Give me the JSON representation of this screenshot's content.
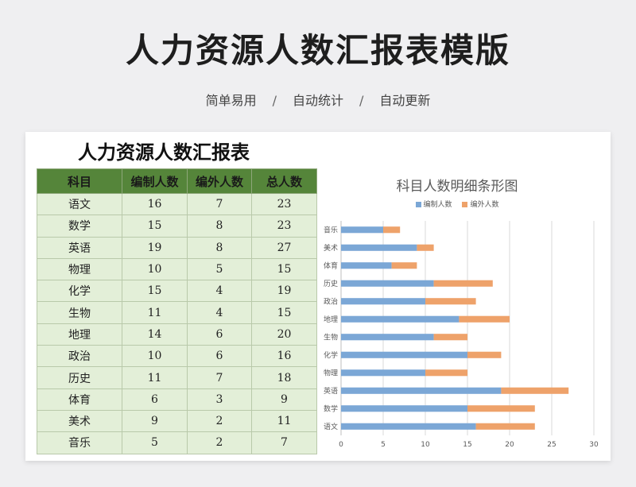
{
  "header": {
    "title": "人力资源人数汇报表模版",
    "features": [
      "简单易用",
      "自动统计",
      "自动更新"
    ],
    "separator": "/"
  },
  "sheet": {
    "title": "人力资源人数汇报表",
    "columns": [
      "科目",
      "编制人数",
      "编外人数",
      "总人数"
    ],
    "rows": [
      [
        "语文",
        "16",
        "7",
        "23"
      ],
      [
        "数学",
        "15",
        "8",
        "23"
      ],
      [
        "英语",
        "19",
        "8",
        "27"
      ],
      [
        "物理",
        "10",
        "5",
        "15"
      ],
      [
        "化学",
        "15",
        "4",
        "19"
      ],
      [
        "生物",
        "11",
        "4",
        "15"
      ],
      [
        "地理",
        "14",
        "6",
        "20"
      ],
      [
        "政治",
        "10",
        "6",
        "16"
      ],
      [
        "历史",
        "11",
        "7",
        "18"
      ],
      [
        "体育",
        "6",
        "3",
        "9"
      ],
      [
        "美术",
        "9",
        "2",
        "11"
      ],
      [
        "音乐",
        "5",
        "2",
        "7"
      ]
    ]
  },
  "chart_data": {
    "type": "bar",
    "orientation": "horizontal",
    "stacked": true,
    "title": "科目人数明细条形图",
    "categories": [
      "语文",
      "数学",
      "英语",
      "物理",
      "化学",
      "生物",
      "地理",
      "政治",
      "历史",
      "体育",
      "美术",
      "音乐"
    ],
    "series": [
      {
        "name": "编制人数",
        "values": [
          16,
          15,
          19,
          10,
          15,
          11,
          14,
          10,
          11,
          6,
          9,
          5
        ],
        "color": "#7ba7d6"
      },
      {
        "name": "编外人数",
        "values": [
          7,
          8,
          8,
          5,
          4,
          4,
          6,
          6,
          7,
          3,
          2,
          2
        ],
        "color": "#eea26a"
      }
    ],
    "xlim": [
      0,
      30
    ],
    "xticks": [
      "0",
      "5",
      "10",
      "15",
      "20",
      "25",
      "30"
    ],
    "grid": true,
    "legend": "top"
  }
}
